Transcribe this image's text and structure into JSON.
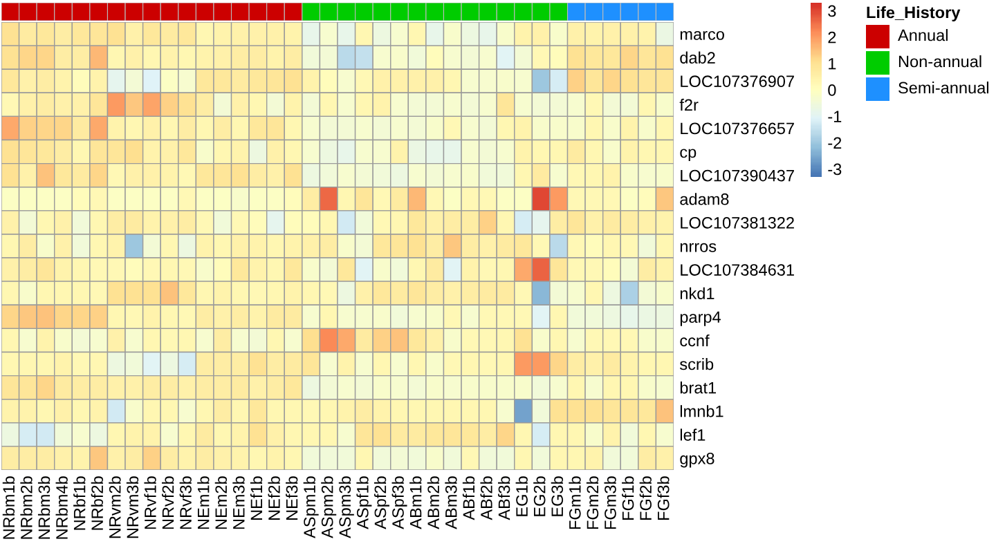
{
  "chart_data": [
    {
      "type": "heatmap",
      "clim": [
        -3.3,
        3.3
      ],
      "cticks": [
        -3,
        -2,
        -1,
        0,
        1,
        2,
        3
      ],
      "legend_title": "Life_History",
      "annotations": [
        "Annual",
        "Non-annual",
        "Semi-annual"
      ],
      "colors": [
        "#4575b4",
        "#91bfdb",
        "#e0f3f8",
        "#ffffbf",
        "#fee090",
        "#fc8d59",
        "#d73027"
      ],
      "categories": [
        "NRbm1b",
        "NRbm2b",
        "NRbm3b",
        "NRbm4b",
        "NRbf1b",
        "NRbf2b",
        "NRvm2b",
        "NRvm3b",
        "NRvf1b",
        "NRvf2b",
        "NRvf3b",
        "NEm1b",
        "NEm2b",
        "NEm3b",
        "NEf1b",
        "NEf2b",
        "NEf3b",
        "ASpm1b",
        "ASpm2b",
        "ASpm3b",
        "ASpf1b",
        "ASpf2b",
        "ASpf3b",
        "ABm1b",
        "ABm2b",
        "ABm3b",
        "ABf1b",
        "ABf2b",
        "ABf3b",
        "EG1b",
        "EG2b",
        "EG3b",
        "FGm1b",
        "FGm2b",
        "FGm3b",
        "FGf1b",
        "FGf2b",
        "FGf3b"
      ],
      "y_categories": [
        "marco",
        "dab2",
        "LOC107376907",
        "f2r",
        "LOC107376657",
        "cp",
        "LOC107390437",
        "adam8",
        "LOC107381322",
        "nrros",
        "LOC107384631",
        "nkd1",
        "parp4",
        "ccnf",
        "scrib",
        "brat1",
        "lmnb1",
        "lef1",
        "gpx8"
      ],
      "cells": [
        [
          1.0,
          0.7,
          0.8,
          0.6,
          0.8,
          0.9,
          1.0,
          0.5,
          0.8,
          0.7,
          0.8,
          0.3,
          0.4,
          0.5,
          0.5,
          0.5,
          0.4,
          -0.8,
          -0.3,
          -0.8,
          0.3,
          -0.6,
          -0.3,
          0.3,
          -0.8,
          -0.2,
          -0.6,
          -0.8,
          -0.2,
          0.4,
          0.5,
          -0.2,
          0.5,
          0.4,
          0.5,
          0.5,
          0.4,
          -0.7
        ],
        [
          1.0,
          1.2,
          1.2,
          0.6,
          0.6,
          1.6,
          0.3,
          0.5,
          0.3,
          0.4,
          0.3,
          0.4,
          0.5,
          0.6,
          0.6,
          0.4,
          0.6,
          -0.5,
          -0.4,
          -1.6,
          -1.5,
          -0.3,
          -0.2,
          -0.5,
          0.1,
          -0.3,
          -0.4,
          -0.3,
          -1.0,
          -0.4,
          0.2,
          0.1,
          1.0,
          0.8,
          0.8,
          1.2,
          0.9,
          1.0
        ],
        [
          0.8,
          0.5,
          0.6,
          0.4,
          0.1,
          0.4,
          -0.9,
          -0.4,
          -1.1,
          -0.1,
          -0.3,
          0.8,
          0.8,
          0.7,
          0.8,
          0.9,
          1.0,
          0.4,
          0.1,
          -0.3,
          0.2,
          0.5,
          0.5,
          0.5,
          0.5,
          0.3,
          -0.3,
          -0.3,
          -0.2,
          -0.3,
          -2.0,
          -1.2,
          1.3,
          0.9,
          1.2,
          1.0,
          0.9,
          0.9
        ],
        [
          0.2,
          0.5,
          0.6,
          0.5,
          0.5,
          0.9,
          2.0,
          1.4,
          1.9,
          1.3,
          1.0,
          0.6,
          -0.4,
          0.5,
          0.3,
          -0.4,
          0.4,
          -0.4,
          0.3,
          -0.3,
          0.3,
          0.4,
          -0.3,
          -0.4,
          -0.4,
          -0.3,
          -0.4,
          -0.3,
          0.9,
          -0.3,
          -0.4,
          -0.4,
          -0.3,
          0.2,
          -0.4,
          -0.4,
          0.3,
          -0.2
        ],
        [
          1.8,
          1.3,
          1.2,
          1.2,
          0.7,
          1.8,
          0.4,
          0.3,
          0.5,
          0.3,
          0.6,
          0.3,
          0.6,
          0.3,
          0.8,
          0.9,
          0.3,
          -0.3,
          -0.4,
          -0.4,
          -0.3,
          -0.4,
          -0.3,
          -0.4,
          -0.2,
          0.2,
          -0.3,
          -0.4,
          0.3,
          0.4,
          -0.2,
          -0.2,
          -0.2,
          0.3,
          -0.2,
          0.4,
          -0.2,
          0.3
        ],
        [
          1.0,
          0.9,
          0.8,
          0.6,
          0.3,
          0.9,
          0.9,
          1.1,
          0.4,
          0.5,
          0.8,
          -0.2,
          0.3,
          0.4,
          -0.6,
          0.5,
          0.3,
          -0.3,
          -0.6,
          -0.8,
          -0.3,
          -0.3,
          0.4,
          -0.7,
          -0.8,
          -0.8,
          -0.3,
          -0.4,
          -0.3,
          0.4,
          0.3,
          0.3,
          0.7,
          0.3,
          -0.2,
          0.4,
          0.3,
          0.3
        ],
        [
          1.0,
          0.5,
          1.5,
          0.8,
          0.7,
          1.2,
          0.2,
          0.5,
          0.5,
          0.4,
          0.2,
          0.8,
          0.9,
          1.0,
          0.6,
          0.5,
          1.0,
          -0.6,
          -0.5,
          -0.3,
          -0.4,
          -0.5,
          -0.6,
          -0.3,
          -0.4,
          -0.3,
          -0.2,
          -0.5,
          -0.5,
          0.3,
          0.7,
          -0.3,
          0.2,
          0.3,
          0.4,
          -0.2,
          -0.3,
          -0.2
        ],
        [
          -0.1,
          -0.1,
          -0.1,
          -0.1,
          0.1,
          0.2,
          -0.1,
          -0.1,
          -0.1,
          -0.1,
          0.2,
          -0.1,
          -0.1,
          -0.2,
          -0.1,
          -0.1,
          0.1,
          0.6,
          2.6,
          0.3,
          0.9,
          0.2,
          0.7,
          1.6,
          0.2,
          -0.1,
          0.2,
          0.2,
          -0.1,
          -0.1,
          3.0,
          2.0,
          0.2,
          0.2,
          0.2,
          -0.1,
          0.1,
          1.4
        ],
        [
          0.5,
          -0.4,
          0.3,
          0.5,
          -0.5,
          0.3,
          0.6,
          0.7,
          0.4,
          0.5,
          0.6,
          0.2,
          -0.5,
          0.2,
          0.1,
          -0.9,
          0.1,
          0.1,
          0.3,
          -1.3,
          -0.5,
          0.2,
          0.3,
          0.8,
          0.5,
          0.6,
          0.6,
          1.3,
          0.3,
          -1.2,
          -0.9,
          0.6,
          0.9,
          0.5,
          0.7,
          0.6,
          0.5,
          0.4
        ],
        [
          0.3,
          0.6,
          -0.2,
          0.5,
          -0.5,
          0.3,
          0.4,
          -2.0,
          -0.4,
          0.3,
          -0.6,
          0.4,
          0.3,
          0.5,
          0.4,
          0.3,
          0.4,
          0.5,
          0.6,
          -0.2,
          -0.4,
          0.8,
          0.9,
          1.0,
          0.6,
          1.4,
          0.6,
          0.5,
          0.7,
          0.8,
          0.2,
          -1.6,
          0.2,
          0.1,
          0.3,
          0.2,
          -0.5,
          0.3
        ],
        [
          0.5,
          0.6,
          0.9,
          0.4,
          0.3,
          0.2,
          0.2,
          0.1,
          0.2,
          0.3,
          0.2,
          -0.2,
          0.1,
          0.8,
          0.4,
          0.3,
          0.8,
          -0.2,
          -0.4,
          0.8,
          -1.0,
          -0.2,
          -0.5,
          0.3,
          0.7,
          -1.0,
          0.4,
          0.2,
          0.3,
          1.8,
          2.7,
          0.9,
          0.2,
          0.2,
          0.1,
          -0.4,
          0.6,
          0.4
        ],
        [
          0.3,
          -0.2,
          0.3,
          0.3,
          0.3,
          0.2,
          1.0,
          1.0,
          1.0,
          1.5,
          0.8,
          0.3,
          0.4,
          0.3,
          0.2,
          0.3,
          0.4,
          0.3,
          0.2,
          -0.6,
          0.5,
          0.8,
          0.7,
          0.9,
          0.6,
          0.5,
          0.6,
          0.7,
          0.7,
          0.2,
          -2.3,
          -0.4,
          -0.3,
          0.3,
          -0.6,
          -1.8,
          -0.4,
          -0.2
        ],
        [
          1.2,
          1.4,
          1.5,
          1.2,
          1.2,
          1.3,
          0.3,
          0.2,
          0.4,
          0.3,
          0.2,
          0.6,
          0.5,
          0.6,
          0.4,
          0.7,
          0.7,
          -0.3,
          0.3,
          -0.3,
          -0.3,
          -0.2,
          -0.5,
          -0.3,
          -0.2,
          0.2,
          -0.3,
          0.2,
          0.2,
          0.2,
          -1.0,
          0.3,
          -0.5,
          -0.5,
          -0.6,
          -0.8,
          -0.7,
          -0.6
        ],
        [
          0.3,
          -0.3,
          0.4,
          -0.2,
          -0.4,
          -0.3,
          0.5,
          -0.3,
          0.3,
          0.2,
          0.3,
          -0.3,
          0.6,
          -0.3,
          -0.4,
          0.3,
          -0.3,
          1.1,
          2.2,
          1.8,
          0.7,
          1.3,
          1.5,
          0.8,
          0.5,
          -0.2,
          0.2,
          0.2,
          0.3,
          1.0,
          -0.2,
          0.3,
          -0.3,
          0.2,
          0.2,
          0.2,
          -0.2,
          -0.2
        ],
        [
          0.3,
          0.3,
          0.3,
          0.4,
          0.2,
          0.3,
          -0.6,
          -0.5,
          -1.0,
          -0.6,
          -1.2,
          0.6,
          0.6,
          0.6,
          1.0,
          0.6,
          0.7,
          0.9,
          -0.3,
          0.4,
          -0.3,
          0.3,
          -0.3,
          0.3,
          -0.2,
          0.2,
          0.3,
          0.2,
          0.3,
          2.0,
          2.0,
          1.2,
          0.6,
          0.5,
          0.7,
          0.4,
          0.3,
          0.3
        ],
        [
          0.9,
          0.9,
          1.2,
          0.7,
          0.6,
          0.6,
          0.5,
          0.5,
          0.6,
          0.6,
          0.5,
          0.6,
          0.6,
          0.7,
          0.5,
          0.6,
          0.8,
          -0.6,
          -0.4,
          -0.3,
          -0.4,
          -0.2,
          -0.3,
          -0.4,
          -0.2,
          -0.3,
          -0.2,
          -0.2,
          -0.2,
          -0.2,
          -0.5,
          -0.3,
          0.3,
          -0.3,
          0.3,
          0.3,
          -0.2,
          -0.3
        ],
        [
          0.4,
          0.4,
          0.3,
          0.5,
          0.3,
          0.4,
          -1.3,
          -0.2,
          0.3,
          0.3,
          -0.3,
          0.3,
          0.6,
          0.3,
          0.8,
          0.3,
          0.3,
          0.2,
          0.3,
          0.4,
          0.6,
          0.4,
          0.3,
          0.3,
          0.3,
          0.3,
          0.3,
          0.3,
          -0.3,
          -2.6,
          -0.5,
          1.0,
          1.0,
          1.0,
          0.9,
          0.9,
          0.8,
          1.5
        ],
        [
          -0.6,
          -1.2,
          -1.3,
          -0.5,
          -0.3,
          -0.6,
          0.3,
          0.4,
          0.4,
          -0.3,
          0.3,
          0.7,
          0.3,
          0.4,
          1.0,
          0.5,
          0.3,
          0.3,
          0.3,
          -0.3,
          0.9,
          1.0,
          0.7,
          0.7,
          0.8,
          0.9,
          0.8,
          0.6,
          1.2,
          0.3,
          -1.2,
          0.3,
          0.3,
          -0.2,
          0.4,
          -0.5,
          0.3,
          -0.3
        ],
        [
          0.6,
          0.6,
          0.6,
          0.5,
          0.4,
          1.4,
          0.5,
          0.6,
          1.3,
          0.6,
          0.4,
          0.6,
          0.5,
          0.4,
          0.3,
          0.4,
          0.3,
          -0.5,
          -0.5,
          -0.5,
          0.3,
          -0.5,
          -0.4,
          -0.5,
          -0.2,
          -0.5,
          0.2,
          -0.5,
          -0.5,
          0.3,
          -0.5,
          0.3,
          0.3,
          0.4,
          -0.5,
          -0.5,
          0.6,
          0.5
        ]
      ]
    }
  ]
}
